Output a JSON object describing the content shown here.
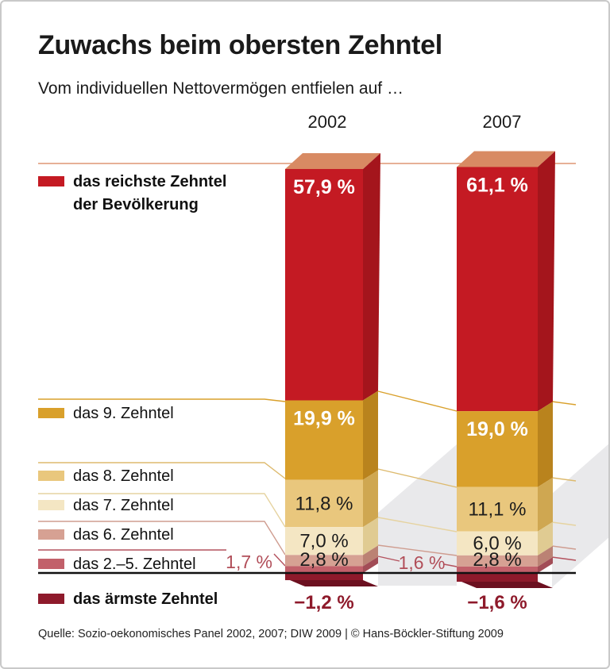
{
  "header": {
    "title": "Zuwachs beim obersten Zehntel",
    "subtitle": "Vom individuellen Nettovermögen entfielen auf …"
  },
  "columns": {
    "years": [
      "2002",
      "2007"
    ]
  },
  "legend": {
    "items": [
      {
        "lines": [
          "das reichste Zehntel",
          "der Bevölkerung"
        ],
        "bold": true
      },
      {
        "lines": [
          "das 9. Zehntel"
        ],
        "bold": false
      },
      {
        "lines": [
          "das 8. Zehntel"
        ],
        "bold": false
      },
      {
        "lines": [
          "das 7. Zehntel"
        ],
        "bold": false
      },
      {
        "lines": [
          "das 6. Zehntel"
        ],
        "bold": false
      },
      {
        "lines": [
          "das 2.–5. Zehntel"
        ],
        "bold": false
      },
      {
        "lines": [
          "das ärmste Zehntel"
        ],
        "bold": true
      }
    ]
  },
  "chart_data": {
    "type": "bar",
    "stacked": true,
    "unit": "% des individuellen Nettovermögens",
    "categories": [
      "2002",
      "2007"
    ],
    "series": [
      {
        "name": "das reichste Zehntel der Bevölkerung",
        "values": [
          57.9,
          61.1
        ],
        "labels": [
          "57,9 %",
          "61,1 %"
        ],
        "color": "#c41a23",
        "side": "#a4151c",
        "top": "#d88a63"
      },
      {
        "name": "das 9. Zehntel",
        "values": [
          19.9,
          19.0
        ],
        "labels": [
          "19,9 %",
          "19,0 %"
        ],
        "color": "#d9a02b",
        "side": "#b9831d"
      },
      {
        "name": "das 8. Zehntel",
        "values": [
          11.8,
          11.1
        ],
        "labels": [
          "11,8 %",
          "11,1 %"
        ],
        "color": "#e9c77d",
        "side": "#cfa751"
      },
      {
        "name": "das 7. Zehntel",
        "values": [
          7.0,
          6.0
        ],
        "labels": [
          "7,0 %",
          "6,0 %"
        ],
        "color": "#f4e6c3",
        "side": "#e0cb92"
      },
      {
        "name": "das 6. Zehntel",
        "values": [
          2.8,
          2.8
        ],
        "labels": [
          "2,8 %",
          "2,8 %"
        ],
        "color": "#d6a193",
        "side": "#bb8274"
      },
      {
        "name": "das 2.–5. Zehntel",
        "values": [
          1.7,
          1.6
        ],
        "labels": [
          "1,7 %",
          "1,6 %"
        ],
        "color": "#c2606a",
        "side": "#a24c56"
      },
      {
        "name": "das ärmste Zehntel",
        "values": [
          -1.2,
          -1.6
        ],
        "labels": [
          "−1,2 %",
          "−1,6 %"
        ],
        "color": "#8e1a2b",
        "skirt": "#6c1020"
      }
    ],
    "baseline": 0,
    "palette": {
      "accent_red": "#c41a23",
      "shadow": "#e9e9eb",
      "zero_line": "#111111",
      "line_salmon": "#dd9673",
      "line_gold": "#d9a02b",
      "line_tan": "#ddba6e",
      "line_cream": "#e6d3a0",
      "line_pink": "#cf9d90",
      "line_rose": "#b4525e",
      "negative_label": "#8e1a2b",
      "outside_label": "#b14e59"
    }
  },
  "footer": {
    "source": "Quelle: Sozio-oekonomisches Panel 2002, 2007; DIW 2009 | © Hans-Böckler-Stiftung 2009"
  }
}
